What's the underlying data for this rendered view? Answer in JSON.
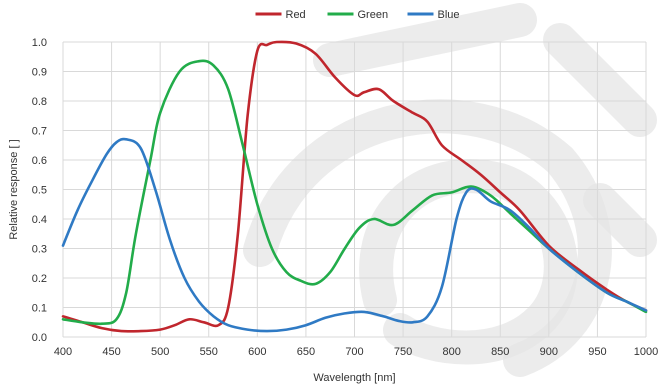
{
  "chart_data": {
    "type": "line",
    "title": "",
    "xlabel": "Wavelength [nm]",
    "ylabel": "Relative response [ ]",
    "xlim": [
      400,
      1000
    ],
    "ylim": [
      0,
      1.0
    ],
    "x_ticks": [
      400,
      450,
      500,
      550,
      600,
      650,
      700,
      750,
      800,
      850,
      900,
      950,
      1000
    ],
    "y_ticks": [
      0.0,
      0.1,
      0.2,
      0.3,
      0.4,
      0.5,
      0.6,
      0.7,
      0.8,
      0.9,
      1.0
    ],
    "y_tick_labels": [
      "0.0",
      "0.1",
      "0.2",
      "0.3",
      "0.4",
      "0.5",
      "0.6",
      "0.7",
      "0.8",
      "0.9",
      "1.0"
    ],
    "grid": true,
    "legend_position": "top-center",
    "series": [
      {
        "name": "Red",
        "color": "#c0262d",
        "points": [
          [
            400,
            0.07
          ],
          [
            420,
            0.05
          ],
          [
            440,
            0.03
          ],
          [
            460,
            0.02
          ],
          [
            480,
            0.02
          ],
          [
            500,
            0.025
          ],
          [
            515,
            0.04
          ],
          [
            530,
            0.06
          ],
          [
            545,
            0.05
          ],
          [
            560,
            0.04
          ],
          [
            570,
            0.1
          ],
          [
            580,
            0.35
          ],
          [
            590,
            0.75
          ],
          [
            600,
            0.97
          ],
          [
            610,
            0.99
          ],
          [
            620,
            1.0
          ],
          [
            640,
            0.995
          ],
          [
            660,
            0.96
          ],
          [
            680,
            0.88
          ],
          [
            700,
            0.82
          ],
          [
            710,
            0.83
          ],
          [
            725,
            0.84
          ],
          [
            740,
            0.8
          ],
          [
            760,
            0.76
          ],
          [
            775,
            0.73
          ],
          [
            790,
            0.65
          ],
          [
            810,
            0.6
          ],
          [
            830,
            0.55
          ],
          [
            850,
            0.49
          ],
          [
            870,
            0.43
          ],
          [
            900,
            0.31
          ],
          [
            930,
            0.23
          ],
          [
            960,
            0.16
          ],
          [
            980,
            0.12
          ],
          [
            1000,
            0.09
          ]
        ]
      },
      {
        "name": "Green",
        "color": "#22ac4a",
        "points": [
          [
            400,
            0.06
          ],
          [
            420,
            0.05
          ],
          [
            440,
            0.045
          ],
          [
            455,
            0.06
          ],
          [
            465,
            0.15
          ],
          [
            475,
            0.35
          ],
          [
            490,
            0.6
          ],
          [
            500,
            0.76
          ],
          [
            520,
            0.9
          ],
          [
            540,
            0.935
          ],
          [
            555,
            0.92
          ],
          [
            570,
            0.84
          ],
          [
            585,
            0.65
          ],
          [
            600,
            0.45
          ],
          [
            615,
            0.3
          ],
          [
            630,
            0.22
          ],
          [
            645,
            0.19
          ],
          [
            660,
            0.18
          ],
          [
            675,
            0.22
          ],
          [
            690,
            0.3
          ],
          [
            705,
            0.37
          ],
          [
            720,
            0.4
          ],
          [
            740,
            0.38
          ],
          [
            760,
            0.43
          ],
          [
            780,
            0.48
          ],
          [
            800,
            0.49
          ],
          [
            820,
            0.51
          ],
          [
            840,
            0.48
          ],
          [
            860,
            0.42
          ],
          [
            880,
            0.36
          ],
          [
            900,
            0.3
          ],
          [
            930,
            0.22
          ],
          [
            960,
            0.15
          ],
          [
            980,
            0.12
          ],
          [
            1000,
            0.085
          ]
        ]
      },
      {
        "name": "Blue",
        "color": "#2f7ac4",
        "points": [
          [
            400,
            0.31
          ],
          [
            415,
            0.43
          ],
          [
            430,
            0.53
          ],
          [
            445,
            0.62
          ],
          [
            455,
            0.66
          ],
          [
            465,
            0.67
          ],
          [
            480,
            0.64
          ],
          [
            495,
            0.5
          ],
          [
            510,
            0.33
          ],
          [
            525,
            0.2
          ],
          [
            540,
            0.12
          ],
          [
            555,
            0.07
          ],
          [
            570,
            0.04
          ],
          [
            590,
            0.025
          ],
          [
            610,
            0.02
          ],
          [
            630,
            0.025
          ],
          [
            650,
            0.04
          ],
          [
            670,
            0.065
          ],
          [
            690,
            0.08
          ],
          [
            710,
            0.085
          ],
          [
            730,
            0.07
          ],
          [
            745,
            0.055
          ],
          [
            760,
            0.05
          ],
          [
            775,
            0.07
          ],
          [
            790,
            0.17
          ],
          [
            805,
            0.4
          ],
          [
            815,
            0.49
          ],
          [
            825,
            0.5
          ],
          [
            840,
            0.46
          ],
          [
            860,
            0.43
          ],
          [
            880,
            0.37
          ],
          [
            900,
            0.3
          ],
          [
            930,
            0.22
          ],
          [
            960,
            0.15
          ],
          [
            980,
            0.12
          ],
          [
            1000,
            0.09
          ]
        ]
      }
    ]
  }
}
